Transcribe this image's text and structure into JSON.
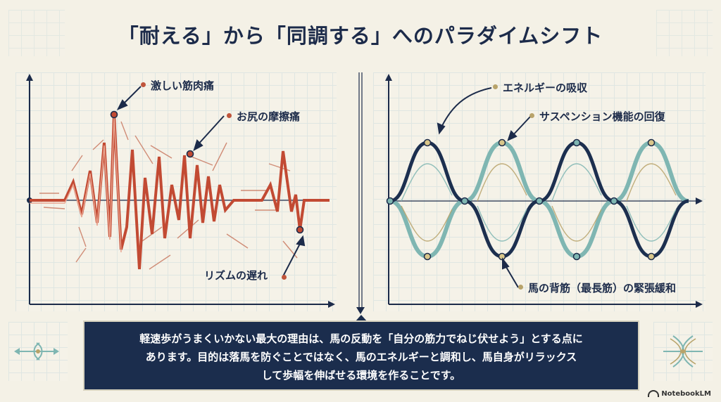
{
  "title": "「耐える」から「同調する」へのパラダイムシフト",
  "left_panel": {
    "labels": {
      "pain_muscle": "激しい筋肉痛",
      "pain_friction": "お尻の摩擦痛",
      "rhythm_delay": "リズムの遅れ"
    },
    "colors": {
      "wave": "#c24a33",
      "label_dot": "#c0553c"
    }
  },
  "right_panel": {
    "labels": {
      "absorb": "エネルギーの吸収",
      "recovery": "サスペンション機能の回復",
      "relax": "馬の背筋（最長筋）の緊張緩和"
    },
    "colors": {
      "wave_dark": "#1c2f4f",
      "wave_teal": "#7fb6b2",
      "label_dot": "#b8a36a"
    }
  },
  "message": {
    "line1": "軽速歩がうまくいかない最大の理由は、馬の反動を「自分の筋力でねじ伏せよう」とする点に",
    "line2": "あります。目的は落馬を防ぐことではなく、馬のエネルギーと調和し、馬自身がリラックス",
    "line3": "して歩幅を伸ばせる環境を作ることです。"
  },
  "brand": "NotebookLM"
}
